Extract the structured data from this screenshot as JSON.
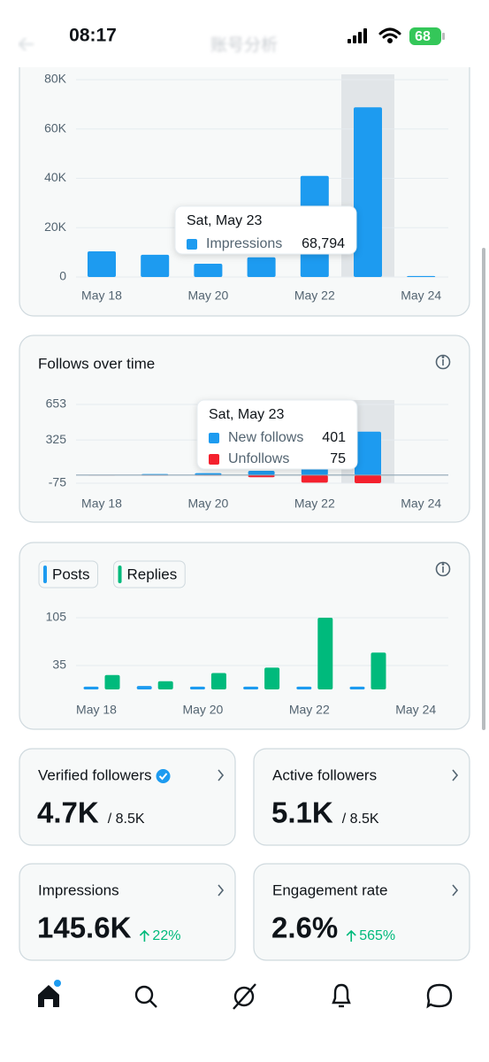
{
  "status_bar": {
    "time": "08:17",
    "battery": "68"
  },
  "header": {
    "title": "账号分析"
  },
  "chart_data": [
    {
      "type": "bar",
      "categories": [
        "May 18",
        null,
        "May 20",
        null,
        "May 22",
        null,
        "May 24"
      ],
      "series": [
        {
          "name": "Impressions",
          "color": "#1d9bf0",
          "values": [
            10400,
            9000,
            5400,
            8000,
            41000,
            68794,
            400
          ],
          "value_labels": [
            null,
            null,
            null,
            null,
            null,
            "68,794",
            null
          ]
        }
      ],
      "ylim": [
        0,
        80000
      ],
      "yticks": [
        0,
        {
          "value": 20000,
          "label": "20K"
        },
        {
          "value": 40000,
          "label": "40K"
        },
        {
          "value": 60000,
          "label": "60K"
        },
        {
          "value": 80000,
          "label": "80K"
        }
      ],
      "grid": true,
      "tooltip": "Sat, May 23"
    },
    {
      "type": "diverging_bar",
      "title": "Follows over time",
      "categories": [
        "May 18",
        null,
        "May 20",
        null,
        "May 22",
        null,
        "May 24"
      ],
      "series": [
        {
          "name": "New follows",
          "color": "#1d9bf0",
          "values": [
            3,
            10,
            18,
            40,
            150,
            401,
            0
          ]
        },
        {
          "name": "Unfollows",
          "color": "#f4212e",
          "values": [
            2,
            3,
            4,
            20,
            70,
            75,
            0
          ],
          "direction": "down"
        }
      ],
      "ylim": [
        -75,
        653
      ],
      "yticks": [
        -75,
        325,
        653
      ],
      "grid": true,
      "tooltip": "Sat, May 23"
    },
    {
      "type": "grouped_bar",
      "categories": [
        "May 18",
        null,
        "May 20",
        null,
        "May 22",
        null,
        "May 24"
      ],
      "series": [
        {
          "name": "Posts",
          "color": "#1d9bf0",
          "values": [
            4,
            5,
            4,
            4,
            4,
            4,
            0
          ]
        },
        {
          "name": "Replies",
          "color": "#00ba7c",
          "values": [
            21,
            12,
            24,
            32,
            105,
            54,
            0
          ]
        }
      ],
      "ylim": [
        0,
        105
      ],
      "yticks": [
        35,
        105
      ],
      "grid": true,
      "legend": "top-left"
    }
  ],
  "stats": [
    {
      "label": "Verified followers",
      "value": "4.7K",
      "total": "/ 8.5K",
      "verified": true
    },
    {
      "label": "Active followers",
      "value": "5.1K",
      "total": "/ 8.5K"
    },
    {
      "label": "Impressions",
      "value": "145.6K",
      "change": "22%"
    },
    {
      "label": "Engagement rate",
      "value": "2.6%",
      "change": "565%"
    }
  ]
}
